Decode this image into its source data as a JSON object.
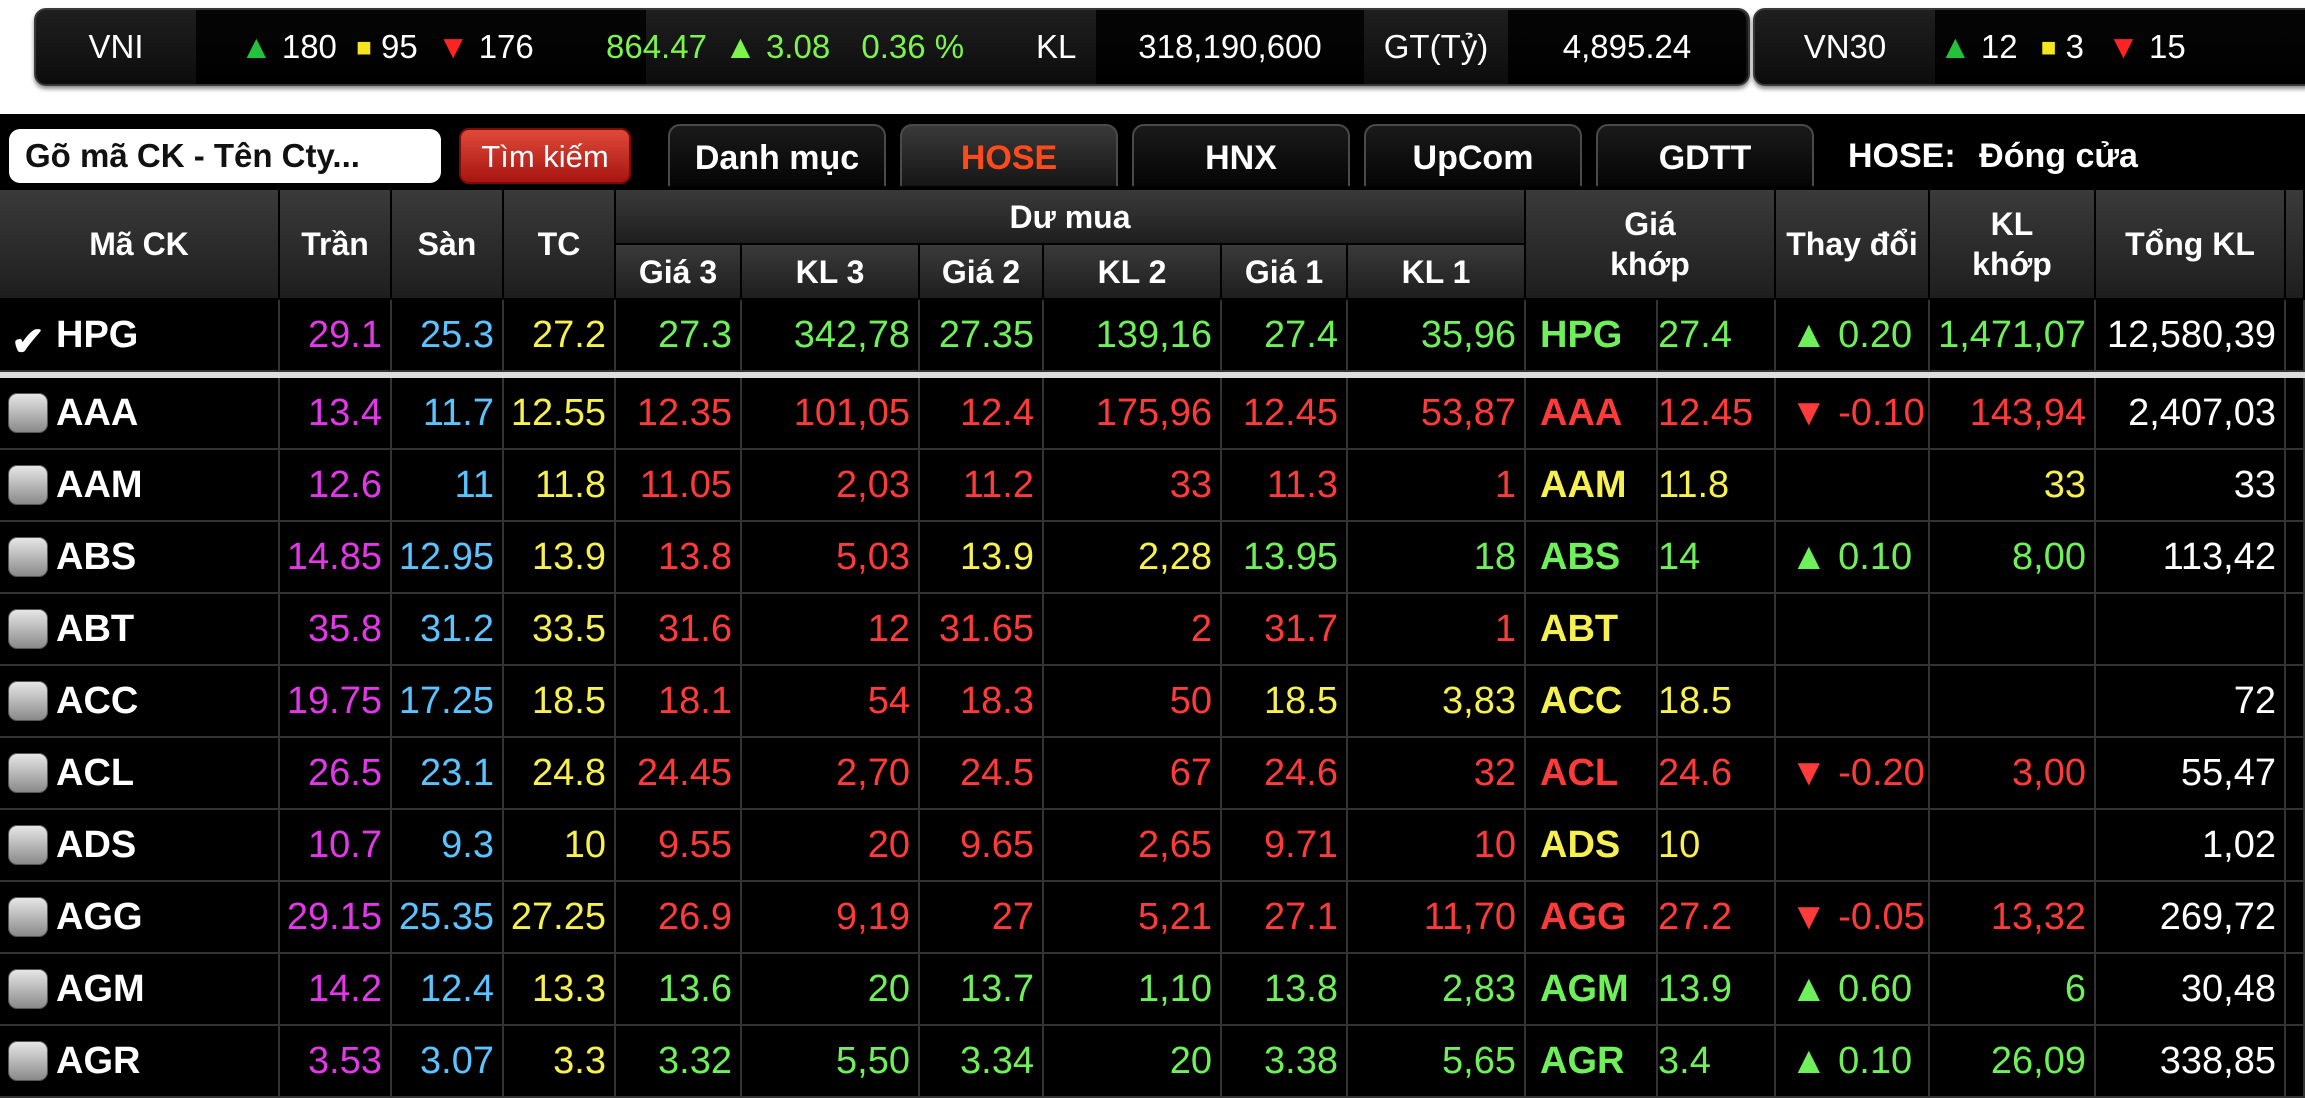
{
  "index_bar": {
    "vni": {
      "name": "VNI",
      "adv": "180",
      "unch": "95",
      "dec": "176",
      "value": "864.47",
      "change": "3.08",
      "pct": "0.36 %",
      "kl_label": "KL",
      "kl_value": "318,190,600",
      "gt_label": "GT(Tỷ)",
      "gt_value": "4,895.24"
    },
    "vn30": {
      "name": "VN30",
      "adv": "12",
      "unch": "3",
      "dec": "15"
    }
  },
  "toolbar": {
    "search_placeholder": "Gõ mã CK - Tên Cty...",
    "search_button": "Tìm kiếm",
    "tabs": [
      "Danh mục",
      "HOSE",
      "HNX",
      "UpCom",
      "GDTT"
    ],
    "active_tab": "HOSE",
    "market_label": "HOSE:",
    "market_status": "Đóng cửa"
  },
  "table": {
    "headers": {
      "ma_ck": "Mã CK",
      "tran": "Trần",
      "san": "Sàn",
      "tc": "TC",
      "du_mua": "Dư mua",
      "gia3": "Giá 3",
      "kl3": "KL 3",
      "gia2": "Giá 2",
      "kl2": "KL 2",
      "gia1": "Giá 1",
      "kl1": "KL 1",
      "gia_khop_1": "Giá",
      "gia_khop_2": "khớp",
      "thay_doi": "Thay đổi",
      "kl_khop_1": "KL",
      "kl_khop_2": "khớp",
      "tong_kl": "Tổng KL"
    },
    "colors": {
      "ceil": "#e238e8",
      "floor": "#5bc3ff",
      "ref": "#f6f050",
      "up": "#6ff05a",
      "down": "#ff3a3a",
      "white": "#ffffff"
    },
    "rows": [
      {
        "sym": "HPG",
        "checked": true,
        "tran": "29.1",
        "san": "25.3",
        "tc": "27.2",
        "g3": "27.3",
        "g3c": "up",
        "k3": "342,78",
        "g2": "27.35",
        "g2c": "up",
        "k2": "139,16",
        "g1": "27.4",
        "g1c": "up",
        "k1": "35,96",
        "msym": "HPG",
        "mprice": "27.4",
        "mc": "up",
        "chg": "0.20",
        "dir": "up",
        "mvol": "1,471,07",
        "total": "12,580,39"
      },
      {
        "sym": "AAA",
        "checked": false,
        "tran": "13.4",
        "san": "11.7",
        "tc": "12.55",
        "g3": "12.35",
        "g3c": "down",
        "k3": "101,05",
        "g2": "12.4",
        "g2c": "down",
        "k2": "175,96",
        "g1": "12.45",
        "g1c": "down",
        "k1": "53,87",
        "msym": "AAA",
        "mprice": "12.45",
        "mc": "down",
        "chg": "-0.10",
        "dir": "down",
        "mvol": "143,94",
        "total": "2,407,03"
      },
      {
        "sym": "AAM",
        "checked": false,
        "tran": "12.6",
        "san": "11",
        "tc": "11.8",
        "g3": "11.05",
        "g3c": "down",
        "k3": "2,03",
        "g2": "11.2",
        "g2c": "down",
        "k2": "33",
        "g1": "11.3",
        "g1c": "down",
        "k1": "1",
        "msym": "AAM",
        "mprice": "11.8",
        "mc": "ref",
        "chg": "",
        "dir": "",
        "mvol": "33",
        "total": "33"
      },
      {
        "sym": "ABS",
        "checked": false,
        "tran": "14.85",
        "san": "12.95",
        "tc": "13.9",
        "g3": "13.8",
        "g3c": "down",
        "k3": "5,03",
        "g2": "13.9",
        "g2c": "ref",
        "k2": "2,28",
        "g1": "13.95",
        "g1c": "up",
        "k1": "18",
        "msym": "ABS",
        "mprice": "14",
        "mc": "up",
        "chg": "0.10",
        "dir": "up",
        "mvol": "8,00",
        "total": "113,42"
      },
      {
        "sym": "ABT",
        "checked": false,
        "tran": "35.8",
        "san": "31.2",
        "tc": "33.5",
        "g3": "31.6",
        "g3c": "down",
        "k3": "12",
        "g2": "31.65",
        "g2c": "down",
        "k2": "2",
        "g1": "31.7",
        "g1c": "down",
        "k1": "1",
        "msym": "ABT",
        "mprice": "",
        "mc": "ref",
        "chg": "",
        "dir": "",
        "mvol": "",
        "total": ""
      },
      {
        "sym": "ACC",
        "checked": false,
        "tran": "19.75",
        "san": "17.25",
        "tc": "18.5",
        "g3": "18.1",
        "g3c": "down",
        "k3": "54",
        "g2": "18.3",
        "g2c": "down",
        "k2": "50",
        "g1": "18.5",
        "g1c": "ref",
        "k1": "3,83",
        "msym": "ACC",
        "mprice": "18.5",
        "mc": "ref",
        "chg": "",
        "dir": "",
        "mvol": "",
        "total": "72"
      },
      {
        "sym": "ACL",
        "checked": false,
        "tran": "26.5",
        "san": "23.1",
        "tc": "24.8",
        "g3": "24.45",
        "g3c": "down",
        "k3": "2,70",
        "g2": "24.5",
        "g2c": "down",
        "k2": "67",
        "g1": "24.6",
        "g1c": "down",
        "k1": "32",
        "msym": "ACL",
        "mprice": "24.6",
        "mc": "down",
        "chg": "-0.20",
        "dir": "down",
        "mvol": "3,00",
        "total": "55,47"
      },
      {
        "sym": "ADS",
        "checked": false,
        "tran": "10.7",
        "san": "9.3",
        "tc": "10",
        "g3": "9.55",
        "g3c": "down",
        "k3": "20",
        "g2": "9.65",
        "g2c": "down",
        "k2": "2,65",
        "g1": "9.71",
        "g1c": "down",
        "k1": "10",
        "msym": "ADS",
        "mprice": "10",
        "mc": "ref",
        "chg": "",
        "dir": "",
        "mvol": "",
        "total": "1,02"
      },
      {
        "sym": "AGG",
        "checked": false,
        "tran": "29.15",
        "san": "25.35",
        "tc": "27.25",
        "g3": "26.9",
        "g3c": "down",
        "k3": "9,19",
        "g2": "27",
        "g2c": "down",
        "k2": "5,21",
        "g1": "27.1",
        "g1c": "down",
        "k1": "11,70",
        "msym": "AGG",
        "mprice": "27.2",
        "mc": "down",
        "chg": "-0.05",
        "dir": "down",
        "mvol": "13,32",
        "total": "269,72"
      },
      {
        "sym": "AGM",
        "checked": false,
        "tran": "14.2",
        "san": "12.4",
        "tc": "13.3",
        "g3": "13.6",
        "g3c": "up",
        "k3": "20",
        "g2": "13.7",
        "g2c": "up",
        "k2": "1,10",
        "g1": "13.8",
        "g1c": "up",
        "k1": "2,83",
        "msym": "AGM",
        "mprice": "13.9",
        "mc": "up",
        "chg": "0.60",
        "dir": "up",
        "mvol": "6",
        "total": "30,48"
      },
      {
        "sym": "AGR",
        "checked": false,
        "tran": "3.53",
        "san": "3.07",
        "tc": "3.3",
        "g3": "3.32",
        "g3c": "up",
        "k3": "5,50",
        "g2": "3.34",
        "g2c": "up",
        "k2": "20",
        "g1": "3.38",
        "g1c": "up",
        "k1": "5,65",
        "msym": "AGR",
        "mprice": "3.4",
        "mc": "up",
        "chg": "0.10",
        "dir": "up",
        "mvol": "26,09",
        "total": "338,85"
      }
    ]
  }
}
